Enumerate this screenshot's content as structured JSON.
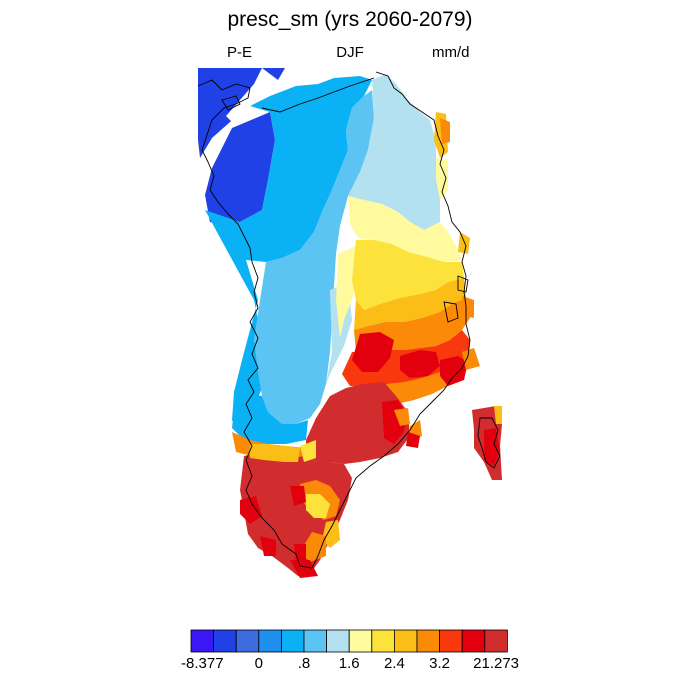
{
  "title": "presc_sm (yrs 2060-2079)",
  "left_label": "P-E",
  "center_label": "DJF",
  "right_label": "mm/d",
  "colorbar": {
    "colors": [
      "#3a18f6",
      "#2041e6",
      "#3e6be0",
      "#1f8fef",
      "#0bb1f5",
      "#5cc4f2",
      "#b3e1f0",
      "#fffa9e",
      "#fde23b",
      "#fbbe17",
      "#fa8a07",
      "#f9390d",
      "#e2000e",
      "#d22d2e"
    ],
    "tick_labels": [
      "-8.377",
      "0",
      ".8",
      "1.6",
      "2.4",
      "3.2",
      "21.273"
    ]
  },
  "legend": {
    "dark_blue": "#2041e6",
    "blue": "#1f8fef",
    "sky": "#0bb1f5",
    "light_blue": "#5cc4f2",
    "pale_blue": "#b3e1f0",
    "pale_yellow": "#fffa9e",
    "yellow": "#fde23b",
    "gold": "#fbbe17",
    "orange": "#fa8a07",
    "red_orange": "#f9390d",
    "red": "#e2000e",
    "dark_red": "#d22d2e"
  }
}
